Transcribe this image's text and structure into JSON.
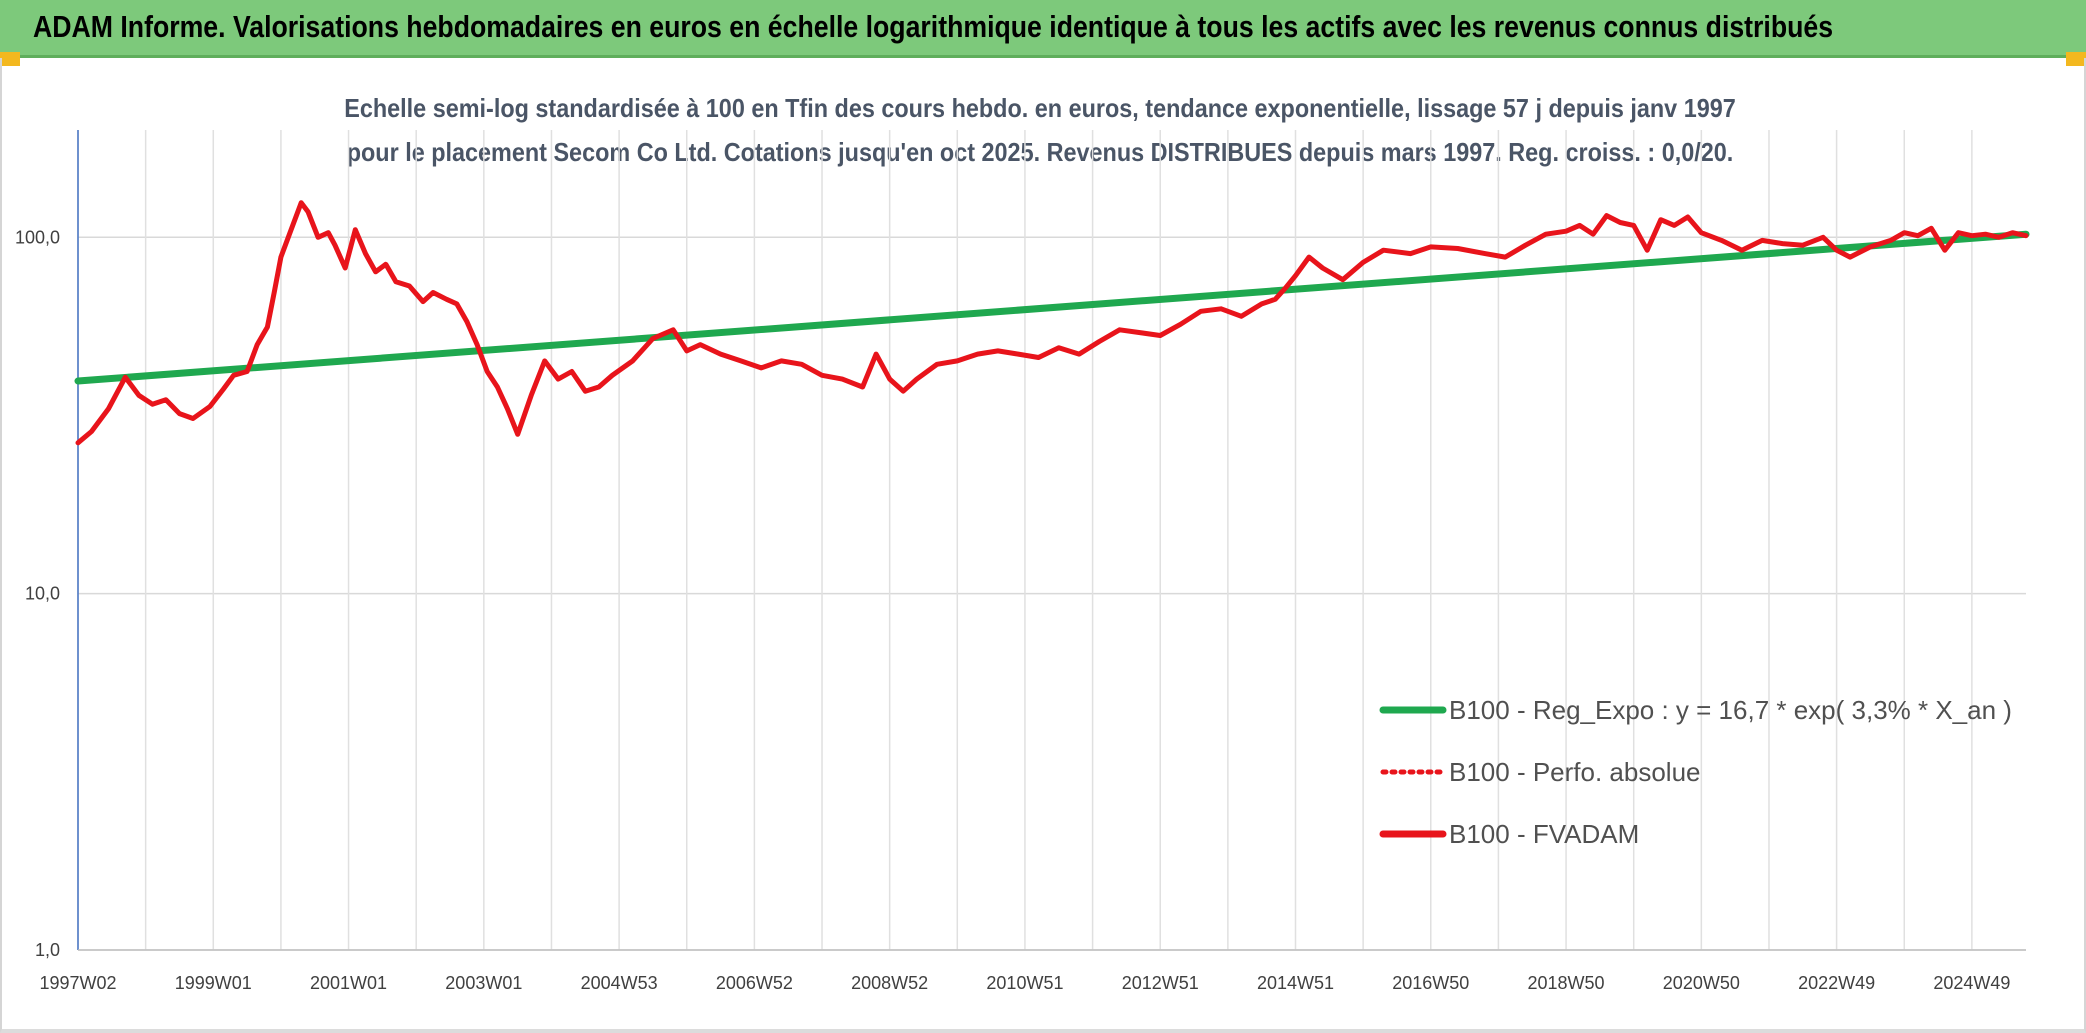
{
  "banner": {
    "title": "ADAM Informe. Valorisations hebdomadaires en euros en échelle logarithmique identique à tous les actifs avec les revenus connus distribués"
  },
  "chart_data": {
    "type": "line",
    "title": "Echelle semi-log standardisée à 100 en Tfin des cours hebdo. en euros, tendance exponentielle, lissage 57 j depuis janv 1997 pour le placement Secom Co Ltd. Cotations jusqu'en oct 2025. Revenus DISTRIBUES depuis mars 1997. Reg. croiss. : 0,0/20.",
    "y_scale": "log",
    "ylim": [
      1,
      200
    ],
    "y_ticks": [
      {
        "value": 1,
        "label": "1,0"
      },
      {
        "value": 10,
        "label": "10,0"
      },
      {
        "value": 100,
        "label": "100,0"
      }
    ],
    "x_range": [
      1997.0,
      2025.8
    ],
    "x_ticks": [
      {
        "t": 1997.0,
        "label": "1997W02"
      },
      {
        "t": 1999.0,
        "label": "1999W01"
      },
      {
        "t": 2001.0,
        "label": "2001W01"
      },
      {
        "t": 2003.0,
        "label": "2003W01"
      },
      {
        "t": 2005.0,
        "label": "2004W53"
      },
      {
        "t": 2007.0,
        "label": "2006W52"
      },
      {
        "t": 2009.0,
        "label": "2008W52"
      },
      {
        "t": 2011.0,
        "label": "2010W51"
      },
      {
        "t": 2013.0,
        "label": "2012W51"
      },
      {
        "t": 2015.0,
        "label": "2014W51"
      },
      {
        "t": 2017.0,
        "label": "2016W50"
      },
      {
        "t": 2019.0,
        "label": "2018W50"
      },
      {
        "t": 2021.0,
        "label": "2020W50"
      },
      {
        "t": 2023.0,
        "label": "2022W49"
      },
      {
        "t": 2025.0,
        "label": "2024W49"
      }
    ],
    "legend_position": "bottom-right",
    "series": [
      {
        "name": "B100 - Reg_Expo : y = 16,7 * exp( 3,3% *  X_an )",
        "color": "#1fa84f",
        "style": "solid",
        "x": [
          1997.0,
          2025.8
        ],
        "values": [
          39.5,
          102.0
        ]
      },
      {
        "name": "B100 - Perfo. absolue",
        "color": "#e8141b",
        "style": "dotted",
        "x": [],
        "values": []
      },
      {
        "name": "B100 - FVADAM",
        "color": "#e8141b",
        "style": "solid",
        "x": [
          1997.0,
          1997.2,
          1997.45,
          1997.7,
          1997.9,
          1998.1,
          1998.3,
          1998.5,
          1998.7,
          1998.95,
          1999.15,
          1999.3,
          1999.5,
          1999.65,
          1999.8,
          1999.9,
          2000.0,
          2000.15,
          2000.3,
          2000.4,
          2000.55,
          2000.7,
          2000.8,
          2000.95,
          2001.1,
          2001.25,
          2001.4,
          2001.55,
          2001.7,
          2001.9,
          2002.1,
          2002.25,
          2002.45,
          2002.6,
          2002.75,
          2002.9,
          2003.05,
          2003.2,
          2003.35,
          2003.5,
          2003.7,
          2003.9,
          2004.1,
          2004.3,
          2004.5,
          2004.7,
          2004.9,
          2005.2,
          2005.5,
          2005.8,
          2006.0,
          2006.2,
          2006.5,
          2006.8,
          2007.1,
          2007.4,
          2007.7,
          2008.0,
          2008.3,
          2008.6,
          2008.8,
          2009.0,
          2009.2,
          2009.4,
          2009.7,
          2010.0,
          2010.3,
          2010.6,
          2010.9,
          2011.2,
          2011.5,
          2011.8,
          2012.1,
          2012.4,
          2012.7,
          2013.0,
          2013.3,
          2013.6,
          2013.9,
          2014.2,
          2014.5,
          2014.7,
          2014.85,
          2015.0,
          2015.2,
          2015.4,
          2015.7,
          2016.0,
          2016.3,
          2016.7,
          2017.0,
          2017.4,
          2017.8,
          2018.1,
          2018.4,
          2018.7,
          2019.0,
          2019.2,
          2019.4,
          2019.6,
          2019.8,
          2020.0,
          2020.2,
          2020.4,
          2020.6,
          2020.8,
          2021.0,
          2021.3,
          2021.6,
          2021.9,
          2022.2,
          2022.5,
          2022.8,
          2023.0,
          2023.2,
          2023.5,
          2023.8,
          2024.0,
          2024.2,
          2024.4,
          2024.6,
          2024.8,
          2025.0,
          2025.2,
          2025.4,
          2025.6,
          2025.8
        ],
        "values": [
          26.5,
          28.5,
          33.0,
          40.5,
          36.0,
          34.0,
          35.0,
          32.0,
          31.0,
          33.5,
          37.5,
          41.0,
          42.0,
          50.0,
          56.0,
          70.0,
          88.0,
          105.0,
          125.0,
          118.0,
          100.0,
          103.0,
          95.0,
          82.0,
          105.0,
          90.0,
          80.0,
          84.0,
          75.0,
          73.0,
          66.0,
          70.0,
          67.0,
          65.0,
          58.0,
          50.0,
          42.0,
          38.0,
          33.0,
          28.0,
          36.0,
          45.0,
          40.0,
          42.0,
          37.0,
          38.0,
          41.0,
          45.0,
          52.0,
          55.0,
          48.0,
          50.0,
          47.0,
          45.0,
          43.0,
          45.0,
          44.0,
          41.0,
          40.0,
          38.0,
          47.0,
          40.0,
          37.0,
          40.0,
          44.0,
          45.0,
          47.0,
          48.0,
          47.0,
          46.0,
          49.0,
          47.0,
          51.0,
          55.0,
          54.0,
          53.0,
          57.0,
          62.0,
          63.0,
          60.0,
          65.0,
          67.0,
          72.0,
          78.0,
          88.0,
          82.0,
          76.0,
          85.0,
          92.0,
          90.0,
          94.0,
          93.0,
          90.0,
          88.0,
          95.0,
          102.0,
          104.0,
          108.0,
          102.0,
          115.0,
          110.0,
          108.0,
          92.0,
          112.0,
          108.0,
          114.0,
          103.0,
          98.0,
          92.0,
          98.0,
          96.0,
          95.0,
          100.0,
          92.0,
          88.0,
          94.0,
          98.0,
          103.0,
          101.0,
          106.0,
          92.0,
          103.0,
          101.0,
          102.0,
          100.0,
          103.0,
          101.0
        ]
      }
    ]
  }
}
